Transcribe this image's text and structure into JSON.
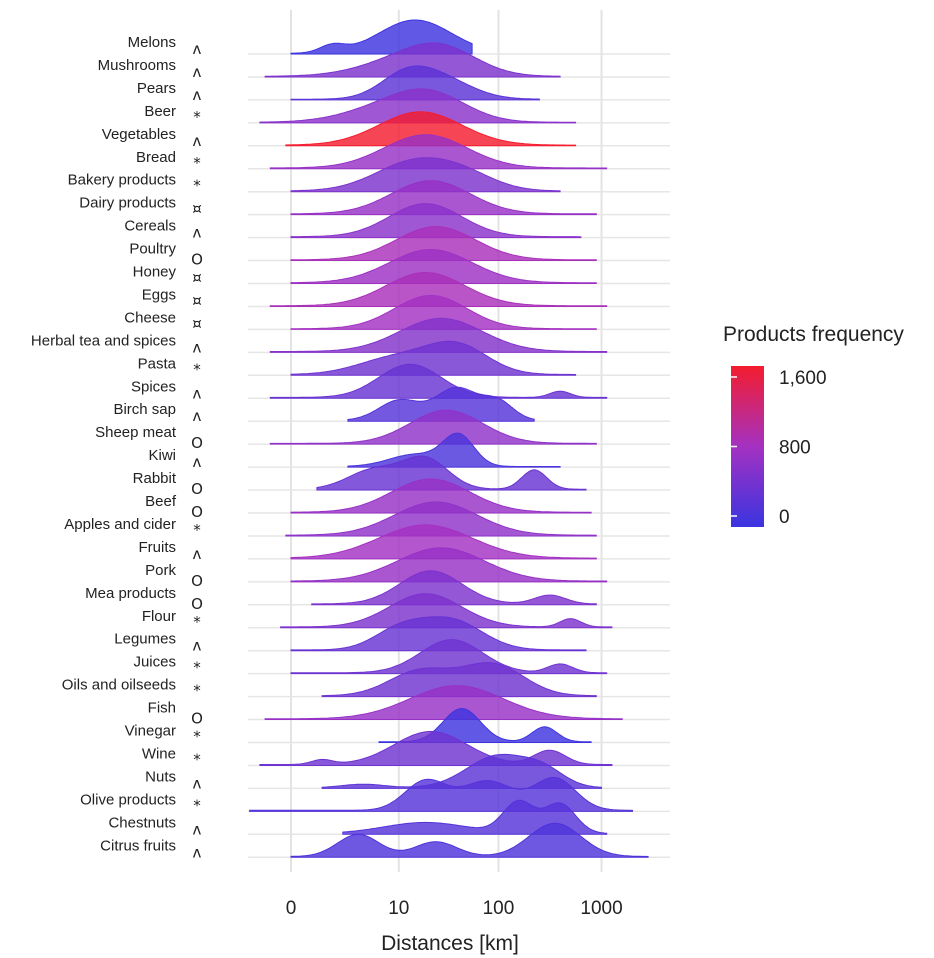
{
  "chart_data": {
    "type": "ridgeline",
    "xlabel": "Distances [km]",
    "x_scale": "log1p",
    "x_ticks": [
      "0",
      "10",
      "100",
      "1000"
    ],
    "x_tick_values": [
      0,
      10,
      100,
      1000
    ],
    "grid": true,
    "legend": {
      "title": "Products frequency",
      "position": "right",
      "ticks": [
        "1,600",
        "800",
        "0"
      ],
      "tick_values": [
        1600,
        800,
        0
      ],
      "colors": {
        "low": "#3a34e0",
        "mid": "#a431c2",
        "high": "#f41c2e"
      }
    },
    "series": [
      {
        "name": "Melons",
        "symbol": "^",
        "frequency": 30,
        "peaks": [
          [
            1.2,
            0.35,
            1.0
          ],
          [
            0.4,
            0.12,
            0.22
          ]
        ],
        "range": [
          0,
          1.75
        ]
      },
      {
        "name": "Mushrooms",
        "symbol": "^",
        "frequency": 500,
        "peaks": [
          [
            1.45,
            0.35,
            0.8
          ],
          [
            1.0,
            0.4,
            0.35
          ]
        ],
        "range": [
          -0.25,
          2.6
        ]
      },
      {
        "name": "Pears",
        "symbol": "^",
        "frequency": 250,
        "peaks": [
          [
            1.1,
            0.25,
            0.6
          ],
          [
            1.45,
            0.3,
            0.55
          ]
        ],
        "range": [
          0,
          2.4
        ]
      },
      {
        "name": "Beer",
        "symbol": "*",
        "frequency": 600,
        "peaks": [
          [
            1.35,
            0.35,
            0.8
          ],
          [
            0.9,
            0.4,
            0.4
          ]
        ],
        "range": [
          -0.3,
          2.75
        ]
      },
      {
        "name": "Vegetables",
        "symbol": "^",
        "frequency": 1600,
        "peaks": [
          [
            1.25,
            0.4,
            1.0
          ]
        ],
        "range": [
          -0.05,
          2.75
        ]
      },
      {
        "name": "Bread",
        "symbol": "*",
        "frequency": 700,
        "peaks": [
          [
            1.3,
            0.4,
            0.85
          ]
        ],
        "range": [
          -0.2,
          3.05
        ]
      },
      {
        "name": "Bakery products",
        "symbol": "*",
        "frequency": 500,
        "peaks": [
          [
            1.2,
            0.38,
            0.75
          ],
          [
            1.7,
            0.3,
            0.3
          ]
        ],
        "range": [
          0,
          2.6
        ]
      },
      {
        "name": "Dairy products",
        "symbol": "¤",
        "frequency": 700,
        "peaks": [
          [
            1.35,
            0.38,
            0.8
          ]
        ],
        "range": [
          0,
          2.95
        ]
      },
      {
        "name": "Cereals",
        "symbol": "^",
        "frequency": 600,
        "peaks": [
          [
            1.3,
            0.35,
            0.7
          ]
        ],
        "range": [
          0,
          2.8
        ]
      },
      {
        "name": "Poultry",
        "symbol": "O",
        "frequency": 850,
        "peaks": [
          [
            1.4,
            0.38,
            0.9
          ]
        ],
        "range": [
          0,
          2.95
        ]
      },
      {
        "name": "Honey",
        "symbol": "¤",
        "frequency": 750,
        "peaks": [
          [
            1.35,
            0.4,
            0.85
          ]
        ],
        "range": [
          0,
          2.95
        ]
      },
      {
        "name": "Eggs",
        "symbol": "¤",
        "frequency": 850,
        "peaks": [
          [
            1.3,
            0.38,
            0.9
          ]
        ],
        "range": [
          -0.2,
          3.05
        ]
      },
      {
        "name": "Cheese",
        "symbol": "¤",
        "frequency": 800,
        "peaks": [
          [
            1.35,
            0.35,
            0.95
          ]
        ],
        "range": [
          0,
          2.95
        ]
      },
      {
        "name": "Herbal tea and spices",
        "symbol": "^",
        "frequency": 550,
        "peaks": [
          [
            1.45,
            0.4,
            0.8
          ]
        ],
        "range": [
          -0.2,
          3.05
        ]
      },
      {
        "name": "Pasta",
        "symbol": "*",
        "frequency": 400,
        "peaks": [
          [
            1.6,
            0.3,
            0.7
          ],
          [
            1.0,
            0.35,
            0.4
          ]
        ],
        "range": [
          0,
          2.75
        ]
      },
      {
        "name": "Spices",
        "symbol": "^",
        "frequency": 350,
        "peaks": [
          [
            1.15,
            0.3,
            0.8
          ],
          [
            2.6,
            0.1,
            0.15
          ]
        ],
        "range": [
          -0.2,
          3.05
        ]
      },
      {
        "name": "Birch sap",
        "symbol": "^",
        "frequency": 200,
        "peaks": [
          [
            1.6,
            0.2,
            0.8
          ],
          [
            1.05,
            0.2,
            0.5
          ],
          [
            2.0,
            0.15,
            0.45
          ]
        ],
        "range": [
          0.55,
          2.35
        ]
      },
      {
        "name": "Sheep meat",
        "symbol": "O",
        "frequency": 650,
        "peaks": [
          [
            1.5,
            0.35,
            0.85
          ]
        ],
        "range": [
          -0.2,
          2.95
        ]
      },
      {
        "name": "Kiwi",
        "symbol": "^",
        "frequency": 120,
        "peaks": [
          [
            1.62,
            0.15,
            1.0
          ],
          [
            1.2,
            0.25,
            0.4
          ]
        ],
        "range": [
          0.55,
          2.6
        ]
      },
      {
        "name": "Rabbit",
        "symbol": "O",
        "frequency": 350,
        "peaks": [
          [
            1.3,
            0.22,
            0.7
          ],
          [
            0.8,
            0.25,
            0.45
          ],
          [
            2.35,
            0.12,
            0.45
          ]
        ],
        "range": [
          0.25,
          2.85
        ]
      },
      {
        "name": "Beef",
        "symbol": "O",
        "frequency": 700,
        "peaks": [
          [
            1.35,
            0.38,
            0.85
          ]
        ],
        "range": [
          0,
          2.9
        ]
      },
      {
        "name": "Apples and cider",
        "symbol": "*",
        "frequency": 650,
        "peaks": [
          [
            1.4,
            0.4,
            0.85
          ]
        ],
        "range": [
          -0.05,
          2.95
        ]
      },
      {
        "name": "Fruits",
        "symbol": "^",
        "frequency": 800,
        "peaks": [
          [
            1.3,
            0.45,
            0.85
          ]
        ],
        "range": [
          0,
          2.95
        ]
      },
      {
        "name": "Pork",
        "symbol": "O",
        "frequency": 700,
        "peaks": [
          [
            1.45,
            0.42,
            0.85
          ]
        ],
        "range": [
          0,
          3.05
        ]
      },
      {
        "name": "Mea products",
        "symbol": "O",
        "frequency": 500,
        "peaks": [
          [
            1.35,
            0.3,
            0.75
          ],
          [
            2.5,
            0.15,
            0.2
          ]
        ],
        "range": [
          0.2,
          2.95
        ]
      },
      {
        "name": "Flour",
        "symbol": "*",
        "frequency": 500,
        "peaks": [
          [
            1.3,
            0.35,
            0.8
          ],
          [
            2.7,
            0.1,
            0.2
          ]
        ],
        "range": [
          -0.1,
          3.1
        ]
      },
      {
        "name": "Legumes",
        "symbol": "^",
        "frequency": 350,
        "peaks": [
          [
            1.55,
            0.3,
            0.75
          ],
          [
            1.05,
            0.25,
            0.5
          ]
        ],
        "range": [
          0,
          2.85
        ]
      },
      {
        "name": "Juices",
        "symbol": "*",
        "frequency": 400,
        "peaks": [
          [
            1.55,
            0.3,
            0.75
          ],
          [
            2.6,
            0.12,
            0.2
          ]
        ],
        "range": [
          0,
          3.05
        ]
      },
      {
        "name": "Oils and oilseeds",
        "symbol": "*",
        "frequency": 400,
        "peaks": [
          [
            1.95,
            0.3,
            0.75
          ],
          [
            1.25,
            0.3,
            0.6
          ]
        ],
        "range": [
          0.3,
          2.95
        ]
      },
      {
        "name": "Fish",
        "symbol": "O",
        "frequency": 700,
        "peaks": [
          [
            1.6,
            0.45,
            0.85
          ]
        ],
        "range": [
          -0.25,
          3.2
        ]
      },
      {
        "name": "Vinegar",
        "symbol": "*",
        "frequency": 30,
        "peaks": [
          [
            1.65,
            0.18,
            1.0
          ],
          [
            2.45,
            0.12,
            0.45
          ]
        ],
        "range": [
          0.85,
          2.9
        ]
      },
      {
        "name": "Wine",
        "symbol": "*",
        "frequency": 400,
        "peaks": [
          [
            1.35,
            0.35,
            0.7
          ],
          [
            2.5,
            0.15,
            0.3
          ],
          [
            0.3,
            0.1,
            0.1
          ]
        ],
        "range": [
          -0.3,
          3.1
        ]
      },
      {
        "name": "Nuts",
        "symbol": "^",
        "frequency": 250,
        "peaks": [
          [
            2.0,
            0.3,
            0.9
          ],
          [
            2.45,
            0.2,
            0.4
          ],
          [
            0.7,
            0.2,
            0.1
          ]
        ],
        "range": [
          0.3,
          3.0
        ]
      },
      {
        "name": "Olive products",
        "symbol": "*",
        "frequency": 200,
        "peaks": [
          [
            1.3,
            0.2,
            0.55
          ],
          [
            1.9,
            0.25,
            0.55
          ],
          [
            2.55,
            0.2,
            0.6
          ]
        ],
        "range": [
          -0.4,
          3.3
        ]
      },
      {
        "name": "Chestnuts",
        "symbol": "^",
        "frequency": 200,
        "peaks": [
          [
            2.2,
            0.15,
            0.85
          ],
          [
            2.6,
            0.15,
            0.8
          ],
          [
            1.3,
            0.4,
            0.3
          ]
        ],
        "range": [
          0.5,
          3.05
        ]
      },
      {
        "name": "Citrus fruits",
        "symbol": "^",
        "frequency": 150,
        "peaks": [
          [
            0.65,
            0.2,
            0.6
          ],
          [
            1.4,
            0.2,
            0.4
          ],
          [
            2.55,
            0.25,
            0.9
          ]
        ],
        "range": [
          0,
          3.45
        ]
      }
    ]
  }
}
